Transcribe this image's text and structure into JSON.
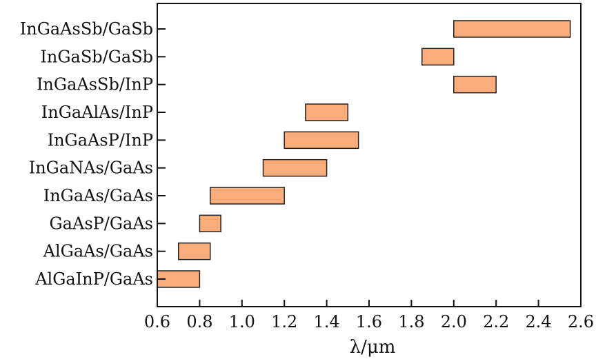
{
  "chart_data": {
    "type": "bar",
    "orientation": "horizontal-range",
    "title": "",
    "xlabel": "λ/μm",
    "ylabel": "",
    "xlim": [
      0.6,
      2.6
    ],
    "xticks": [
      "0.6",
      "0.8",
      "1.0",
      "1.2",
      "1.4",
      "1.6",
      "1.8",
      "2.0",
      "2.2",
      "2.4",
      "2.6"
    ],
    "grid": false,
    "bar_color": "#f8ad7b",
    "categories": [
      "InGaAsSb/GaSb",
      "InGaSb/GaSb",
      "InGaAsSb/InP",
      "InGaAlAs/InP",
      "InGaAsP/InP",
      "InGaNAs/GaAs",
      "InGaAs/GaAs",
      "GaAsP/GaAs",
      "AlGaAs/GaAs",
      "AlGaInP/GaAs"
    ],
    "ranges": [
      [
        2.0,
        2.55
      ],
      [
        1.85,
        2.0
      ],
      [
        2.0,
        2.2
      ],
      [
        1.3,
        1.5
      ],
      [
        1.2,
        1.55
      ],
      [
        1.1,
        1.4
      ],
      [
        0.85,
        1.2
      ],
      [
        0.8,
        0.9
      ],
      [
        0.7,
        0.85
      ],
      [
        0.6,
        0.8
      ]
    ]
  }
}
